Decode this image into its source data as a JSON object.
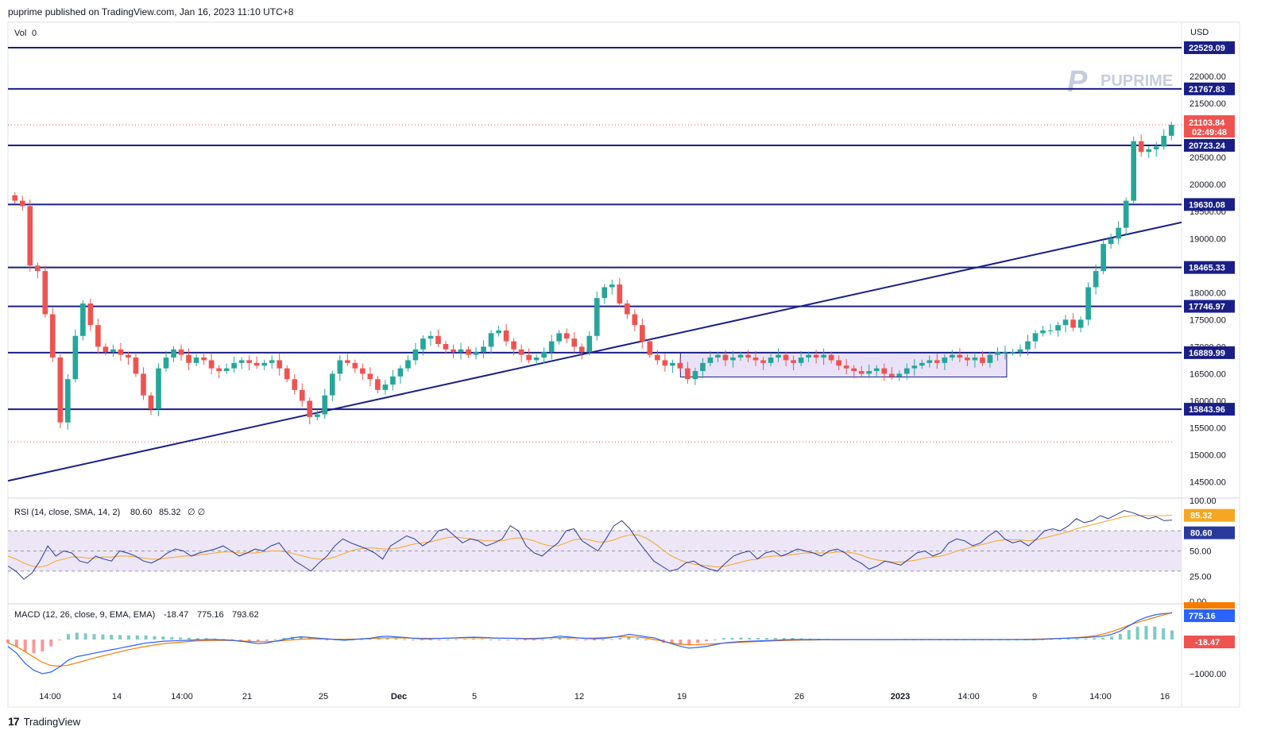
{
  "header": {
    "published": "puprime published on TradingView.com, Jan 16, 2023 11:10 UTC+8"
  },
  "footer": {
    "brand": "TradingView",
    "logo_mark": "17"
  },
  "watermark": {
    "text": "PUPRIME",
    "mark": "P"
  },
  "colors": {
    "line": "#1a1f87",
    "up": "#26a69a",
    "down": "#ef5350",
    "box": "#e1d5f5",
    "rsi": "#2a3a9c",
    "rsi_sma": "#f5a623",
    "macd": "#2962ff",
    "signal": "#f57c00"
  },
  "chart_data": [
    {
      "type": "candlestick",
      "currency": "USD",
      "volume_label": "Vol",
      "volume_value": "0",
      "y_ticks": [
        "22000.00",
        "21500.00",
        "21000.00",
        "20500.00",
        "20000.00",
        "19500.00",
        "19000.00",
        "18500.00",
        "18000.00",
        "17500.00",
        "17000.00",
        "16500.00",
        "16000.00",
        "15500.00",
        "15000.00",
        "14500.00"
      ],
      "y_range": [
        14200,
        23000
      ],
      "x_ticks": [
        "14:00",
        "14",
        "14:00",
        "21",
        "25",
        "Dec",
        "5",
        "12",
        "19",
        "26",
        "2023",
        "14:00",
        "9",
        "14:00",
        "16"
      ],
      "levels": [
        {
          "label": "22529.09",
          "value": 22529.09
        },
        {
          "label": "21767.83",
          "value": 21767.83
        },
        {
          "label": "20723.24",
          "value": 20723.24
        },
        {
          "label": "19630.08",
          "value": 19630.08
        },
        {
          "label": "18465.33",
          "value": 18465.33
        },
        {
          "label": "17746.97",
          "value": 17746.97
        },
        {
          "label": "16889.99",
          "value": 16889.99
        },
        {
          "label": "15843.96",
          "value": 15843.96
        }
      ],
      "trendline": {
        "from": [
          0,
          14520
        ],
        "to": [
          1,
          19300
        ]
      },
      "range_box": {
        "x": [
          0.573,
          0.851
        ],
        "y": [
          16440,
          16890
        ]
      },
      "last_price": {
        "value": "21103.84",
        "timer": "02:49:48",
        "numeric": 21103.84
      },
      "previous_low_line": 15240,
      "closes": [
        19700,
        19600,
        18500,
        18400,
        17600,
        16800,
        15600,
        16400,
        17200,
        17800,
        17400,
        17000,
        16900,
        16950,
        16850,
        16800,
        16500,
        16100,
        15850,
        16600,
        16800,
        16950,
        16850,
        16700,
        16800,
        16750,
        16600,
        16550,
        16600,
        16700,
        16750,
        16700,
        16650,
        16700,
        16750,
        16600,
        16400,
        16200,
        16000,
        15700,
        15750,
        16100,
        16500,
        16750,
        16700,
        16600,
        16500,
        16400,
        16200,
        16300,
        16450,
        16600,
        16750,
        16950,
        17150,
        17200,
        17050,
        16950,
        16900,
        16950,
        16850,
        16900,
        17000,
        17250,
        17300,
        17100,
        16950,
        16850,
        16750,
        16800,
        16900,
        17100,
        17250,
        17150,
        17000,
        16900,
        17200,
        17900,
        18100,
        18150,
        17800,
        17600,
        17400,
        17100,
        16850,
        16750,
        16650,
        16700,
        16600,
        16400,
        16550,
        16700,
        16800,
        16850,
        16750,
        16800,
        16850,
        16800,
        16750,
        16700,
        16800,
        16850,
        16750,
        16700,
        16800,
        16850,
        16800,
        16850,
        16750,
        16650,
        16600,
        16550,
        16500,
        16550,
        16600,
        16500,
        16450,
        16500,
        16600,
        16650,
        16700,
        16750,
        16700,
        16800,
        16850,
        16800,
        16750,
        16800,
        16700,
        16850,
        16900,
        16900,
        16900,
        16950,
        17100,
        17250,
        17300,
        17300,
        17400,
        17500,
        17350,
        17500,
        18100,
        18400,
        18900,
        19000,
        19200,
        19700,
        20800,
        20600,
        20650,
        20700,
        20900,
        21103
      ]
    },
    {
      "type": "line",
      "title": "RSI (14, close, SMA, 14, 2)",
      "rsi_value": "80.60",
      "sma_value": "85.32",
      "extra": "∅ ∅",
      "y_ticks": [
        "100.00",
        "50.00",
        "25.00",
        "0.00"
      ],
      "band": [
        30,
        70
      ],
      "rsi": [
        35,
        30,
        22,
        28,
        40,
        55,
        45,
        50,
        48,
        40,
        38,
        45,
        42,
        40,
        50,
        48,
        45,
        40,
        38,
        42,
        48,
        52,
        50,
        45,
        48,
        50,
        52,
        55,
        50,
        45,
        48,
        52,
        50,
        55,
        58,
        48,
        40,
        35,
        30,
        38,
        45,
        55,
        62,
        58,
        55,
        52,
        48,
        42,
        55,
        60,
        65,
        62,
        55,
        60,
        70,
        72,
        65,
        58,
        62,
        60,
        55,
        58,
        62,
        75,
        70,
        55,
        48,
        45,
        52,
        58,
        70,
        72,
        60,
        55,
        50,
        62,
        75,
        80,
        72,
        60,
        50,
        40,
        35,
        30,
        32,
        38,
        40,
        35,
        32,
        30,
        38,
        45,
        48,
        50,
        42,
        48,
        50,
        45,
        48,
        52,
        50,
        48,
        45,
        50,
        52,
        48,
        42,
        38,
        32,
        35,
        40,
        38,
        36,
        42,
        48,
        50,
        45,
        48,
        58,
        62,
        60,
        55,
        58,
        65,
        70,
        62,
        58,
        60,
        55,
        62,
        70,
        72,
        70,
        75,
        82,
        78,
        80,
        85,
        82,
        86,
        90,
        88,
        85,
        82,
        84,
        80,
        80.6
      ],
      "rsi_sma": [
        45,
        42,
        38,
        35,
        34,
        36,
        40,
        42,
        44,
        44,
        43,
        43,
        44,
        44,
        45,
        45,
        44,
        43,
        42,
        42,
        43,
        44,
        45,
        45,
        46,
        47,
        48,
        49,
        49,
        48,
        48,
        48,
        49,
        50,
        50,
        49,
        47,
        45,
        43,
        42,
        42,
        44,
        47,
        50,
        52,
        53,
        53,
        52,
        52,
        53,
        55,
        57,
        58,
        59,
        61,
        63,
        64,
        63,
        62,
        61,
        60,
        60,
        60,
        62,
        63,
        62,
        60,
        57,
        55,
        55,
        58,
        61,
        62,
        61,
        59,
        59,
        61,
        64,
        66,
        66,
        63,
        58,
        52,
        46,
        42,
        39,
        37,
        36,
        35,
        34,
        35,
        37,
        39,
        41,
        42,
        44,
        45,
        45,
        46,
        47,
        48,
        48,
        48,
        48,
        49,
        49,
        48,
        46,
        43,
        41,
        40,
        39,
        39,
        40,
        41,
        43,
        44,
        45,
        47,
        50,
        52,
        54,
        56,
        58,
        60,
        61,
        61,
        61,
        60,
        61,
        63,
        65,
        67,
        69,
        72,
        74,
        76,
        78,
        80,
        82,
        84,
        85,
        85,
        85,
        85,
        85,
        85.32
      ]
    },
    {
      "type": "bar-line",
      "title": "MACD (12, 26, close, 9, EMA, EMA)",
      "hist_value": "-18.47",
      "macd_value": "775.16",
      "signal_value": "793.62",
      "y_ticks": [
        "0.00",
        "−1000.00"
      ],
      "macd": [
        -200,
        -400,
        -700,
        -900,
        -1000,
        -950,
        -800,
        -600,
        -500,
        -450,
        -400,
        -350,
        -300,
        -250,
        -200,
        -150,
        -100,
        -80,
        -50,
        -40,
        -30,
        -20,
        -10,
        0,
        0,
        -10,
        -20,
        -50,
        -80,
        -120,
        -100,
        -50,
        0,
        50,
        80,
        60,
        40,
        20,
        0,
        -20,
        0,
        20,
        40,
        80,
        100,
        80,
        60,
        40,
        20,
        20,
        30,
        40,
        50,
        60,
        70,
        60,
        50,
        40,
        40,
        30,
        20,
        20,
        30,
        60,
        100,
        80,
        50,
        30,
        20,
        30,
        60,
        100,
        150,
        120,
        80,
        50,
        -50,
        -120,
        -200,
        -250,
        -230,
        -200,
        -150,
        -100,
        -80,
        -60,
        -50,
        -40,
        -30,
        -20,
        -10,
        0,
        0,
        0,
        0,
        0,
        0,
        0,
        0,
        0,
        0,
        0,
        0,
        0,
        0,
        0,
        0,
        0,
        0,
        0,
        0,
        0,
        0,
        0,
        0,
        0,
        0,
        0,
        0,
        0,
        10,
        20,
        30,
        40,
        50,
        60,
        80,
        100,
        150,
        250,
        400,
        550,
        650,
        720,
        760,
        775.16
      ],
      "signal": [
        -100,
        -200,
        -350,
        -500,
        -650,
        -750,
        -780,
        -760,
        -700,
        -630,
        -560,
        -500,
        -440,
        -380,
        -320,
        -270,
        -220,
        -180,
        -140,
        -110,
        -90,
        -70,
        -50,
        -40,
        -30,
        -25,
        -25,
        -30,
        -40,
        -55,
        -65,
        -60,
        -50,
        -30,
        -10,
        10,
        20,
        20,
        15,
        10,
        10,
        12,
        15,
        25,
        40,
        50,
        50,
        48,
        42,
        38,
        36,
        36,
        38,
        42,
        46,
        48,
        48,
        46,
        45,
        42,
        38,
        34,
        33,
        38,
        50,
        56,
        55,
        50,
        44,
        42,
        45,
        55,
        70,
        80,
        80,
        74,
        50,
        10,
        -40,
        -90,
        -130,
        -150,
        -155,
        -145,
        -130,
        -115,
        -100,
        -85,
        -75,
        -65,
        -55,
        -45,
        -35,
        -28,
        -22,
        -17,
        -13,
        -10,
        -8,
        -6,
        -5,
        -4,
        -3,
        -3,
        -2,
        -2,
        -2,
        -1,
        -1,
        -1,
        -1,
        -1,
        -1,
        -1,
        0,
        0,
        0,
        0,
        0,
        0,
        2,
        5,
        10,
        15,
        22,
        30,
        40,
        50,
        65,
        85,
        120,
        175,
        250,
        340,
        430,
        510,
        580,
        650,
        720,
        793.62
      ]
    }
  ]
}
